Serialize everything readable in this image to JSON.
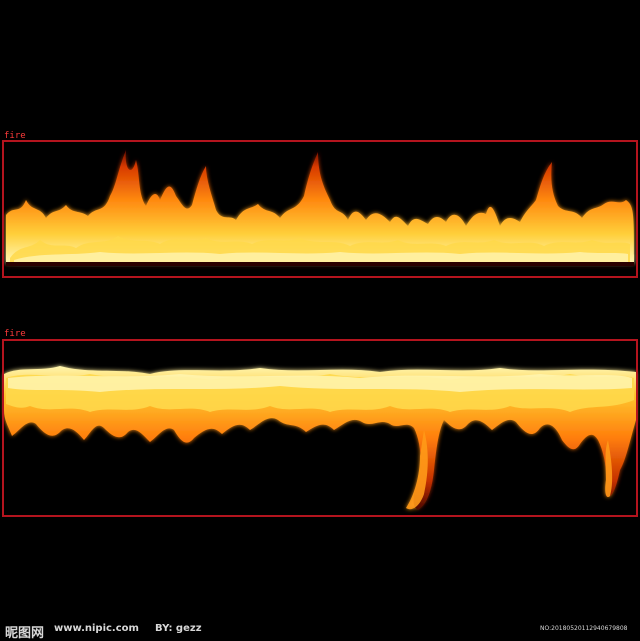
{
  "image": {
    "description_colors": {
      "background": "#000000",
      "flame_core": "#fff3a0",
      "flame_mid": "#ffa11a",
      "flame_edge": "#c42a00",
      "box": "#b4141e",
      "label": "#ff3b3b"
    }
  },
  "detections": [
    {
      "label": "fire"
    },
    {
      "label": "fire"
    }
  ],
  "watermark": {
    "site_cn": "昵图网",
    "url": "www.nipic.com",
    "by": "BY: gezz",
    "number": "NO:20180520112940679808"
  }
}
